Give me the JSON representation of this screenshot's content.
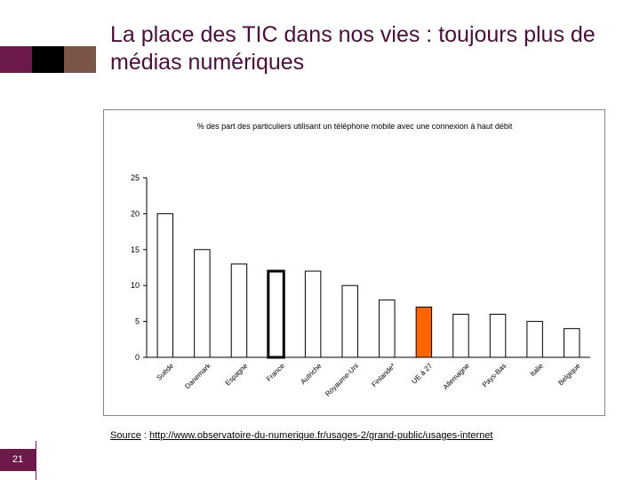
{
  "slide": {
    "title": "La place des TIC dans nos vies : toujours plus de médias numériques",
    "source_label": "Source",
    "source_sep": " : ",
    "source_url": "http://www.observatoire-du-numerique.fr/usages-2/grand-public/usages-internet",
    "slide_number": "21",
    "colors": {
      "accent": "#6b1a4a",
      "bar": "#ffffff",
      "highlight_eu": "#ff6600"
    }
  },
  "chart_data": {
    "type": "bar",
    "title": "% des part des particuliers utilisant un téléphone mobile avec une connexion à haut débit",
    "categories": [
      "Suède",
      "Danemark",
      "Espagne",
      "France",
      "Autriche",
      "Royaume-Uni",
      "Finlande*",
      "UE à 27",
      "Allemagne",
      "Pays-Bas",
      "Italie",
      "Belgique"
    ],
    "values": [
      20,
      15,
      13,
      12,
      12,
      10,
      8,
      7,
      6,
      6,
      5,
      4
    ],
    "highlight": {
      "France": "bold-outline",
      "UE à 27": "orange"
    },
    "ylim": [
      0,
      25
    ],
    "yticks": [
      0,
      5,
      10,
      15,
      20,
      25
    ],
    "xlabel": "",
    "ylabel": "",
    "grid": false,
    "legend": "none"
  }
}
